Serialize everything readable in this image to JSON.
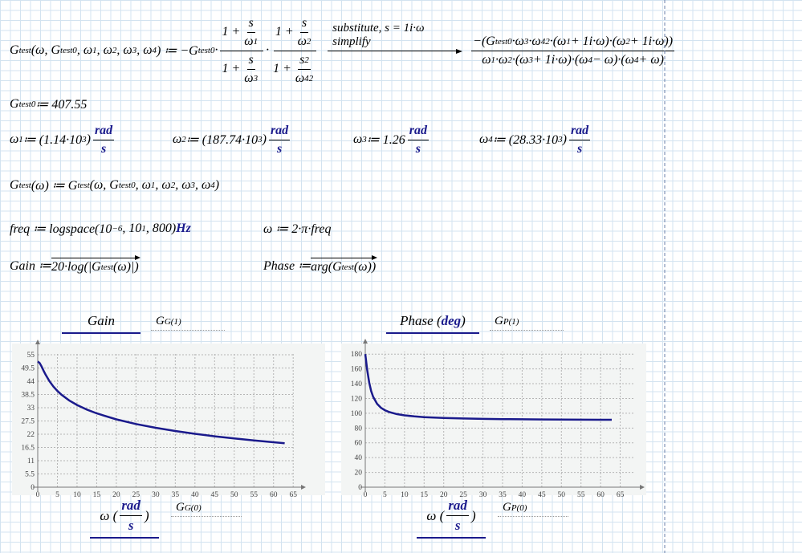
{
  "equations": {
    "transfer": [
      "G",
      {
        "sub": "test"
      },
      "(ω, G",
      {
        "sub": "test0"
      },
      ", ω",
      {
        "sub": "1"
      },
      ", ω",
      {
        "sub": "2"
      },
      ", ω",
      {
        "sub": "3"
      },
      ", ω",
      {
        "sub": "4"
      },
      ") ≔ −G",
      {
        "sub": "test0"
      },
      "·",
      {
        "num": [
          "1 + ",
          {
            "num": [
              "s"
            ],
            "den": [
              "ω",
              {
                "sub": "1"
              }
            ]
          }
        ],
        "den": [
          "1 + ",
          {
            "num": [
              "s"
            ],
            "den": [
              "ω",
              {
                "sub": "3"
              }
            ]
          }
        ]
      },
      "·",
      {
        "num": [
          "1 + ",
          {
            "num": [
              "s"
            ],
            "den": [
              "ω",
              {
                "sub": "2"
              }
            ]
          }
        ],
        "den": [
          "1 + ",
          {
            "num": [
              "s",
              {
                "sup": "2"
              }
            ],
            "den": [
              "ω",
              {
                "sub": "4"
              },
              {
                "sup": "2"
              }
            ]
          }
        ]
      },
      {
        "keywords": [
          "substitute, s = 1i·ω",
          "simplify"
        ]
      },
      {
        "num": [
          "−(G",
          {
            "sub": "test0"
          },
          "·ω",
          {
            "sub": "3"
          },
          "·ω",
          {
            "sub": "4"
          },
          {
            "sup": "2"
          },
          "·(ω",
          {
            "sub": "1"
          },
          " + 1i·ω)·(ω",
          {
            "sub": "2"
          },
          " + 1i·ω))"
        ],
        "den": [
          "ω",
          {
            "sub": "1"
          },
          "·ω",
          {
            "sub": "2"
          },
          "·(ω",
          {
            "sub": "3"
          },
          " + 1i·ω)·(ω",
          {
            "sub": "4"
          },
          " − ω)·(ω",
          {
            "sub": "4"
          },
          " + ω)"
        ]
      }
    ],
    "gain0": [
      "G",
      {
        "sub": "test0"
      },
      " ≔ 407.55"
    ],
    "omegas": [
      [
        "ω",
        {
          "sub": "1"
        },
        " ≔ (1.14·10",
        {
          "sup": "3"
        },
        ") ",
        {
          "units": {
            "num": [
              "rad"
            ],
            "den": [
              "s"
            ]
          }
        }
      ],
      [
        "ω",
        {
          "sub": "2"
        },
        " ≔ (187.74·10",
        {
          "sup": "3"
        },
        ") ",
        {
          "units": {
            "num": [
              "rad"
            ],
            "den": [
              "s"
            ]
          }
        }
      ],
      [
        "ω",
        {
          "sub": "3"
        },
        " ≔ 1.26 ",
        {
          "units": {
            "num": [
              "rad"
            ],
            "den": [
              "s"
            ]
          }
        }
      ],
      [
        "ω",
        {
          "sub": "4"
        },
        " ≔ (28.33·10",
        {
          "sup": "3"
        },
        ") ",
        {
          "units": {
            "num": [
              "rad"
            ],
            "den": [
              "s"
            ]
          }
        }
      ]
    ],
    "gtest_w": [
      "G",
      {
        "sub": "test"
      },
      "(ω) ≔ G",
      {
        "sub": "test"
      },
      "(ω, G",
      {
        "sub": "test0"
      },
      ", ω",
      {
        "sub": "1"
      },
      ", ω",
      {
        "sub": "2"
      },
      ", ω",
      {
        "sub": "3"
      },
      ", ω",
      {
        "sub": "4"
      },
      ")"
    ],
    "freq": [
      "freq ≔ logspace(10",
      {
        "sup": "−6"
      },
      ", 10",
      {
        "sup": "1"
      },
      ", 800) ",
      {
        "unit": "Hz"
      }
    ],
    "omega": [
      "ω ≔ 2·π·freq"
    ],
    "gain": [
      "Gain ≔ ",
      {
        "vec": [
          "20·log(|G",
          {
            "sub": "test"
          },
          "(ω)|)"
        ]
      }
    ],
    "phase": [
      "Phase ≔ ",
      {
        "vec": [
          "arg(G",
          {
            "sub": "test"
          },
          "(ω))"
        ]
      }
    ]
  },
  "chart_data": [
    {
      "type": "line",
      "y_label": [
        "Gain"
      ],
      "y_trace_placeholder": [
        "G",
        {
          "sub": "G"
        },
        {
          "sup": "(1)"
        }
      ],
      "x_label": [
        "ω (",
        {
          "units": {
            "num": [
              "rad"
            ],
            "den": [
              "s"
            ]
          }
        },
        ")"
      ],
      "x_trace_placeholder": [
        "G",
        {
          "sub": "G"
        },
        {
          "sup": "(0)"
        }
      ],
      "x": [
        0,
        0.5,
        1,
        1.5,
        2,
        3,
        4,
        5,
        6,
        8,
        10,
        12.5,
        15,
        20,
        25,
        30,
        35,
        40,
        45,
        50,
        55,
        60,
        62.83
      ],
      "series": [
        {
          "color": "#1a1a8c",
          "values": [
            52.2,
            51.57,
            50.08,
            48.37,
            46.74,
            43.96,
            41.76,
            39.96,
            38.46,
            36.04,
            34.14,
            32.23,
            30.66,
            28.17,
            26.24,
            24.66,
            23.32,
            22.17,
            21.14,
            20.23,
            19.4,
            18.65,
            18.25
          ]
        }
      ],
      "xlim": [
        0,
        67
      ],
      "ylim": [
        0,
        58
      ],
      "xticks": [
        0,
        5,
        10,
        15,
        20,
        25,
        30,
        35,
        40,
        45,
        50,
        55,
        60,
        65
      ],
      "yticks": [
        0,
        5.5,
        11,
        16.5,
        22,
        27.5,
        33,
        38.5,
        44,
        49.5,
        55
      ],
      "grid": true
    },
    {
      "type": "line",
      "y_label": [
        "Phase (",
        {
          "unit": "deg"
        },
        ")"
      ],
      "y_trace_placeholder": [
        "G",
        {
          "sub": "P"
        },
        {
          "sup": "(1)"
        }
      ],
      "x_label": [
        "ω (",
        {
          "units": {
            "num": [
              "rad"
            ],
            "den": [
              "s"
            ]
          }
        },
        ")"
      ],
      "x_trace_placeholder": [
        "G",
        {
          "sub": "P"
        },
        {
          "sup": "(0)"
        }
      ],
      "x": [
        0,
        0.5,
        1,
        1.5,
        2,
        3,
        4,
        5,
        6,
        8,
        10,
        12.5,
        15,
        20,
        25,
        30,
        35,
        40,
        45,
        50,
        55,
        60,
        62.83
      ],
      "series": [
        {
          "color": "#1a1a8c",
          "values": [
            180,
            158.36,
            141.56,
            130.03,
            122.22,
            112.78,
            107.48,
            104.14,
            101.86,
            98.95,
            97.18,
            95.76,
            94.8,
            93.6,
            92.89,
            92.41,
            92.06,
            91.8,
            91.6,
            91.44,
            91.31,
            91.2,
            91.15
          ]
        }
      ],
      "xlim": [
        0,
        70
      ],
      "ylim": [
        0,
        190
      ],
      "xticks": [
        0,
        5,
        10,
        15,
        20,
        25,
        30,
        35,
        40,
        45,
        50,
        55,
        60,
        65
      ],
      "yticks": [
        0,
        20,
        40,
        60,
        80,
        100,
        120,
        140,
        160,
        180
      ],
      "grid": true
    }
  ]
}
